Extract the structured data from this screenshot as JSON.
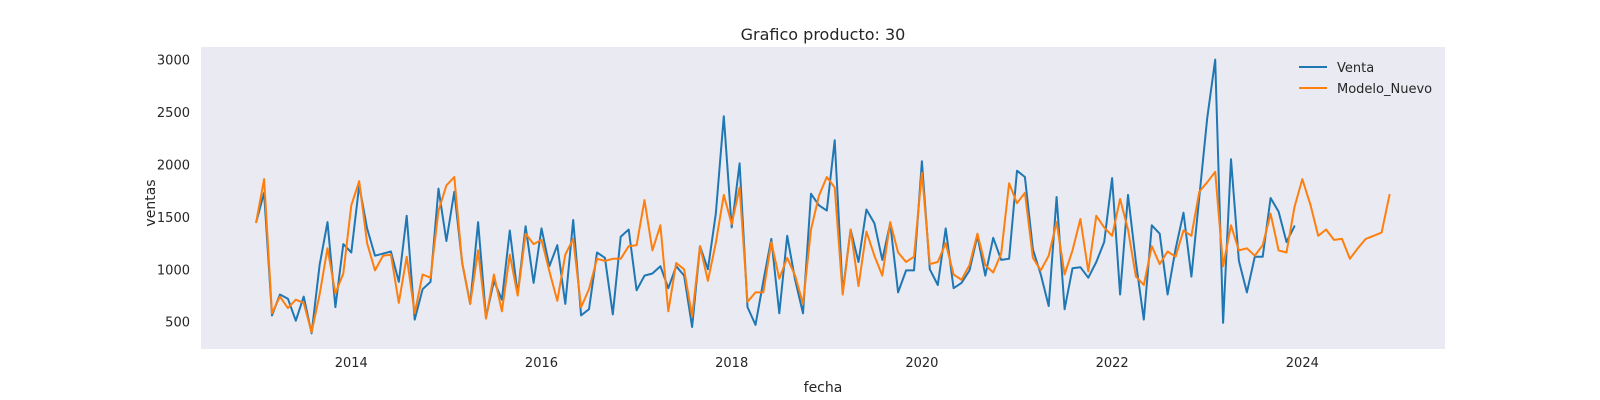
{
  "chart_data": {
    "type": "line",
    "title": "Grafico producto: 30",
    "xlabel": "fecha",
    "ylabel": "ventas",
    "xlim": [
      2012.42,
      2025.5
    ],
    "ylim": [
      240,
      3120
    ],
    "x_ticks": [
      2014,
      2016,
      2018,
      2020,
      2022,
      2024
    ],
    "y_ticks": [
      500,
      1000,
      1500,
      2000,
      2500,
      3000
    ],
    "grid": false,
    "legend_position": "top-right",
    "background": "#eaeaf2",
    "series": [
      {
        "name": "Venta",
        "color": "#1f77b4",
        "start": 2013.0,
        "step": 0.0833333,
        "values": [
          1450,
          1730,
          560,
          760,
          720,
          510,
          740,
          390,
          1040,
          1450,
          640,
          1240,
          1160,
          1800,
          1390,
          1130,
          1150,
          1170,
          880,
          1510,
          520,
          810,
          880,
          1770,
          1270,
          1740,
          1060,
          670,
          1450,
          540,
          890,
          710,
          1370,
          760,
          1410,
          870,
          1390,
          1030,
          1230,
          670,
          1470,
          560,
          620,
          1160,
          1110,
          570,
          1310,
          1380,
          800,
          940,
          960,
          1030,
          820,
          1030,
          940,
          450,
          1220,
          1000,
          1530,
          2460,
          1400,
          2010,
          640,
          470,
          890,
          1290,
          580,
          1320,
          900,
          580,
          1720,
          1610,
          1560,
          2230,
          780,
          1380,
          1070,
          1570,
          1440,
          1090,
          1440,
          780,
          990,
          990,
          2030,
          1000,
          850,
          1390,
          820,
          870,
          990,
          1320,
          940,
          1300,
          1090,
          1100,
          1940,
          1880,
          1190,
          950,
          650,
          1690,
          620,
          1010,
          1020,
          920,
          1070,
          1260,
          1870,
          760,
          1710,
          1070,
          520,
          1420,
          1340,
          760,
          1190,
          1540,
          930,
          1690,
          2440,
          3000,
          490,
          2050,
          1080,
          780,
          1120,
          1120,
          1680,
          1550,
          1260,
          1410
        ]
      },
      {
        "name": "Modelo_Nuevo",
        "color": "#ff7f0e",
        "start": 2013.0,
        "step": 0.0833333,
        "values": [
          1450,
          1860,
          580,
          740,
          630,
          710,
          680,
          400,
          760,
          1200,
          770,
          960,
          1610,
          1840,
          1250,
          990,
          1130,
          1140,
          680,
          1120,
          580,
          950,
          920,
          1560,
          1800,
          1880,
          1060,
          670,
          1180,
          530,
          950,
          600,
          1140,
          750,
          1340,
          1240,
          1280,
          980,
          700,
          1140,
          1290,
          640,
          810,
          1100,
          1080,
          1100,
          1100,
          1220,
          1230,
          1660,
          1180,
          1420,
          600,
          1060,
          1000,
          550,
          1220,
          890,
          1250,
          1710,
          1430,
          1780,
          690,
          780,
          780,
          1260,
          910,
          1110,
          940,
          670,
          1380,
          1700,
          1880,
          1780,
          760,
          1380,
          840,
          1360,
          1130,
          940,
          1450,
          1160,
          1070,
          1120,
          1920,
          1050,
          1070,
          1250,
          950,
          900,
          1040,
          1340,
          1040,
          970,
          1150,
          1820,
          1630,
          1730,
          1110,
          990,
          1130,
          1450,
          950,
          1180,
          1480,
          980,
          1510,
          1400,
          1320,
          1670,
          1380,
          930,
          850,
          1220,
          1050,
          1170,
          1120,
          1370,
          1320,
          1740,
          1830,
          1930,
          1030,
          1420,
          1180,
          1200,
          1130,
          1230,
          1530,
          1180,
          1160,
          1590,
          1860,
          1620,
          1320,
          1380,
          1280,
          1290,
          1100,
          1200,
          1290,
          1320,
          1350,
          1710
        ]
      }
    ]
  }
}
